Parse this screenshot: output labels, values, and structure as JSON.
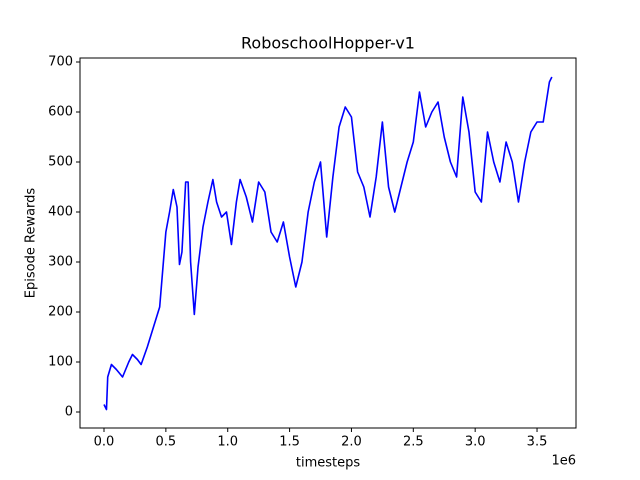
{
  "chart_data": {
    "type": "line",
    "title": "RoboschoolHopper-v1",
    "x_label": "timesteps",
    "y_label": "Episode Rewards",
    "x_offset_label": "1e6",
    "series": [
      {
        "name": "Episode Rewards",
        "color": "#0000ff",
        "x": [
          0,
          20000,
          30000,
          60000,
          100000,
          150000,
          200000,
          230000,
          270000,
          300000,
          350000,
          400000,
          450000,
          480000,
          500000,
          530000,
          560000,
          590000,
          610000,
          630000,
          660000,
          680000,
          700000,
          730000,
          760000,
          800000,
          840000,
          880000,
          910000,
          950000,
          990000,
          1030000,
          1070000,
          1100000,
          1150000,
          1200000,
          1250000,
          1300000,
          1350000,
          1400000,
          1450000,
          1500000,
          1550000,
          1600000,
          1650000,
          1700000,
          1750000,
          1800000,
          1850000,
          1900000,
          1950000,
          2000000,
          2050000,
          2100000,
          2150000,
          2200000,
          2250000,
          2300000,
          2350000,
          2400000,
          2450000,
          2500000,
          2550000,
          2600000,
          2650000,
          2700000,
          2750000,
          2800000,
          2850000,
          2900000,
          2950000,
          3000000,
          3050000,
          3100000,
          3150000,
          3200000,
          3250000,
          3300000,
          3350000,
          3400000,
          3450000,
          3500000,
          3550000,
          3600000,
          3620000
        ],
        "values": [
          15,
          5,
          70,
          95,
          85,
          70,
          100,
          115,
          105,
          95,
          130,
          170,
          210,
          300,
          360,
          400,
          445,
          410,
          295,
          320,
          460,
          460,
          300,
          195,
          290,
          370,
          420,
          465,
          420,
          390,
          400,
          335,
          420,
          465,
          430,
          380,
          460,
          440,
          360,
          340,
          380,
          310,
          250,
          300,
          400,
          460,
          500,
          350,
          470,
          570,
          610,
          590,
          480,
          450,
          390,
          470,
          580,
          450,
          400,
          450,
          500,
          540,
          640,
          570,
          600,
          620,
          550,
          500,
          470,
          630,
          560,
          440,
          420,
          560,
          500,
          460,
          540,
          500,
          420,
          500,
          560,
          580,
          580,
          660,
          670
        ]
      }
    ],
    "xlim": [
      -194000,
      3815000
    ],
    "xticks": [
      {
        "value": 0,
        "label": "0.0"
      },
      {
        "value": 500000,
        "label": "0.5"
      },
      {
        "value": 1000000,
        "label": "1.0"
      },
      {
        "value": 1500000,
        "label": "1.5"
      },
      {
        "value": 2000000,
        "label": "2.0"
      },
      {
        "value": 2500000,
        "label": "2.5"
      },
      {
        "value": 3000000,
        "label": "3.0"
      },
      {
        "value": 3500000,
        "label": "3.5"
      }
    ],
    "ylim": [
      -32,
      708
    ],
    "yticks": [
      0,
      100,
      200,
      300,
      400,
      500,
      600,
      700
    ],
    "grid": false
  }
}
